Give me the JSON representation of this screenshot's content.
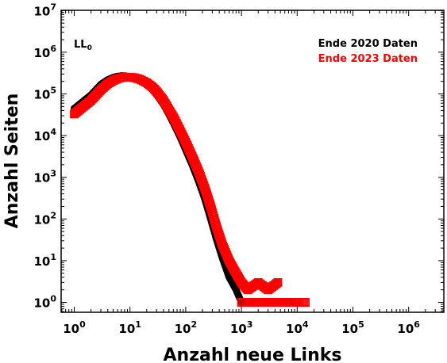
{
  "chart_data": {
    "type": "scatter",
    "x_scale": "log",
    "y_scale": "log",
    "xlabel": "Anzahl neue Links",
    "ylabel": "Anzahl Seiten",
    "xlim": [
      0.5,
      50000000
    ],
    "ylim": [
      0.5,
      10000000
    ],
    "x_ticks": [
      {
        "base": "10",
        "exp": "0"
      },
      {
        "base": "10",
        "exp": "1"
      },
      {
        "base": "10",
        "exp": "2"
      },
      {
        "base": "10",
        "exp": "3"
      },
      {
        "base": "10",
        "exp": "4"
      },
      {
        "base": "10",
        "exp": "5"
      },
      {
        "base": "10",
        "exp": "6"
      }
    ],
    "y_ticks": [
      {
        "base": "10",
        "exp": "0"
      },
      {
        "base": "10",
        "exp": "1"
      },
      {
        "base": "10",
        "exp": "2"
      },
      {
        "base": "10",
        "exp": "3"
      },
      {
        "base": "10",
        "exp": "4"
      },
      {
        "base": "10",
        "exp": "5"
      },
      {
        "base": "10",
        "exp": "6"
      },
      {
        "base": "10",
        "exp": "7"
      }
    ],
    "annotation": {
      "main": "LL",
      "sub": "0"
    },
    "legend_position": "top-right",
    "grid": false,
    "series": [
      {
        "name": "Ende 2020 Daten",
        "color": "#000000",
        "marker": "filled-circle",
        "points": [
          [
            1,
            45000
          ],
          [
            2,
            95000
          ],
          [
            3,
            170000
          ],
          [
            4,
            220000
          ],
          [
            5,
            250000
          ],
          [
            6,
            265000
          ],
          [
            7,
            272000
          ],
          [
            8,
            270000
          ],
          [
            10,
            262000
          ],
          [
            12,
            245000
          ],
          [
            15,
            220000
          ],
          [
            20,
            170000
          ],
          [
            25,
            130000
          ],
          [
            30,
            95000
          ],
          [
            40,
            55000
          ],
          [
            50,
            32000
          ],
          [
            60,
            20000
          ],
          [
            80,
            9000
          ],
          [
            100,
            4500
          ],
          [
            130,
            2000
          ],
          [
            170,
            800
          ],
          [
            220,
            300
          ],
          [
            280,
            100
          ],
          [
            350,
            35
          ],
          [
            450,
            12
          ],
          [
            600,
            4
          ],
          [
            800,
            2
          ],
          [
            1000,
            1
          ],
          [
            1500,
            1
          ],
          [
            2500,
            1
          ],
          [
            5000,
            1
          ],
          [
            9000,
            1
          ]
        ]
      },
      {
        "name": "Ende 2023 Daten",
        "color": "#ff0000",
        "marker": "open-square",
        "points": [
          [
            1,
            33000
          ],
          [
            2,
            70000
          ],
          [
            3,
            125000
          ],
          [
            4,
            175000
          ],
          [
            5,
            210000
          ],
          [
            6,
            232000
          ],
          [
            7,
            245000
          ],
          [
            8,
            250000
          ],
          [
            10,
            252000
          ],
          [
            12,
            245000
          ],
          [
            15,
            225000
          ],
          [
            20,
            185000
          ],
          [
            25,
            148000
          ],
          [
            30,
            115000
          ],
          [
            40,
            70000
          ],
          [
            50,
            42000
          ],
          [
            60,
            28000
          ],
          [
            80,
            13000
          ],
          [
            100,
            7000
          ],
          [
            130,
            3200
          ],
          [
            170,
            1400
          ],
          [
            220,
            550
          ],
          [
            280,
            200
          ],
          [
            350,
            70
          ],
          [
            450,
            25
          ],
          [
            600,
            10
          ],
          [
            800,
            5
          ],
          [
            1000,
            3
          ],
          [
            1300,
            2
          ],
          [
            2000,
            3
          ],
          [
            3000,
            2
          ],
          [
            4500,
            3
          ],
          [
            1000,
            1
          ],
          [
            2000,
            1
          ],
          [
            4000,
            1
          ],
          [
            7000,
            1
          ],
          [
            10000,
            1
          ],
          [
            14000,
            1
          ]
        ]
      }
    ]
  }
}
